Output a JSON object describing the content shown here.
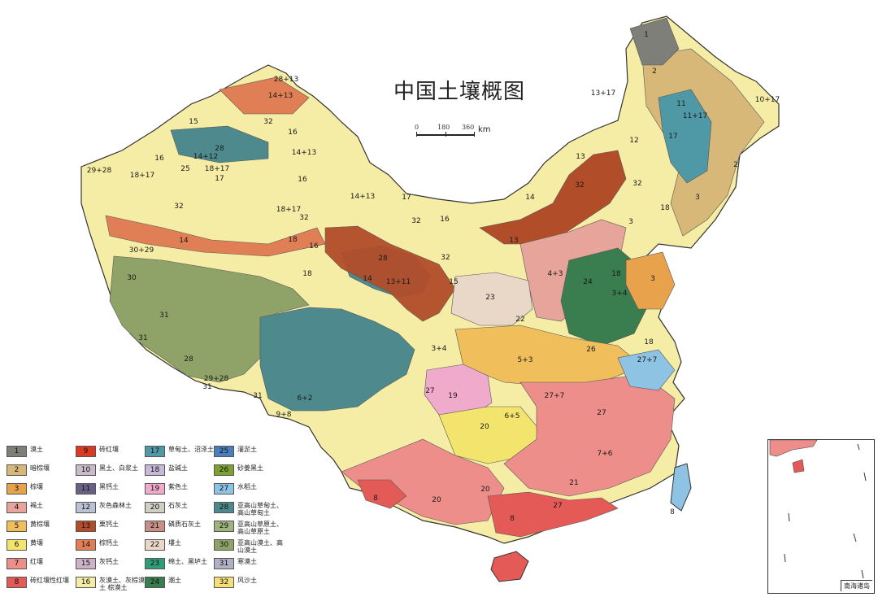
{
  "map": {
    "title": "中国土壤概图",
    "scale": {
      "ticks": [
        "0",
        "180",
        "360"
      ],
      "unit": "km"
    },
    "inset_label": "南海诸岛",
    "legend": [
      {
        "code": "1",
        "name": "漠土",
        "color": "#7d7f78"
      },
      {
        "code": "2",
        "name": "暗棕壤",
        "color": "#d8b878"
      },
      {
        "code": "3",
        "name": "棕壤",
        "color": "#e8a24c"
      },
      {
        "code": "4",
        "name": "褐土",
        "color": "#e7a49a"
      },
      {
        "code": "5",
        "name": "黄棕壤",
        "color": "#f0bf5c"
      },
      {
        "code": "6",
        "name": "黄壤",
        "color": "#f3e46e"
      },
      {
        "code": "7",
        "name": "红壤",
        "color": "#ee8e8a"
      },
      {
        "code": "8",
        "name": "砖红壤性红壤",
        "color": "#e35a56"
      },
      {
        "code": "9",
        "name": "砖红壤",
        "color": "#d83a24"
      },
      {
        "code": "10",
        "name": "黑土、白浆土",
        "color": "#c9bcc8"
      },
      {
        "code": "11",
        "name": "黑钙土",
        "color": "#6a5f86"
      },
      {
        "code": "12",
        "name": "灰色森林土",
        "color": "#bcc2d6"
      },
      {
        "code": "13",
        "name": "栗钙土",
        "color": "#b24d2a"
      },
      {
        "code": "14",
        "name": "棕钙土",
        "color": "#e07f55"
      },
      {
        "code": "15",
        "name": "灰钙土",
        "color": "#ccb2c6"
      },
      {
        "code": "16",
        "name": "灰漠土、灰棕漠土 棕漠土",
        "color": "#f5eda6"
      },
      {
        "code": "17",
        "name": "草甸土、沼泽土",
        "color": "#4f98a6"
      },
      {
        "code": "18",
        "name": "盐碱土",
        "color": "#c7b7d8"
      },
      {
        "code": "19",
        "name": "紫色土",
        "color": "#f0aacb"
      },
      {
        "code": "20",
        "name": "石灰土",
        "color": "#d0cfc4"
      },
      {
        "code": "21",
        "name": "磷质石灰土",
        "color": "#c88f86"
      },
      {
        "code": "22",
        "name": "塿土",
        "color": "#e9d7c8"
      },
      {
        "code": "23",
        "name": "绵土、黑垆土",
        "color": "#2e9d78"
      },
      {
        "code": "24",
        "name": "潮土",
        "color": "#3a7d4f"
      },
      {
        "code": "25",
        "name": "灌淤土",
        "color": "#4c7dbd"
      },
      {
        "code": "26",
        "name": "砂姜黑土",
        "color": "#7ea132"
      },
      {
        "code": "27",
        "name": "水稻土",
        "color": "#8ec3e3"
      },
      {
        "code": "28",
        "name": "亚高山草甸土、高山草甸土",
        "color": "#4e8a8d"
      },
      {
        "code": "29",
        "name": "亚高山草原土、高山草原土",
        "color": "#9fb47c"
      },
      {
        "code": "30",
        "name": "亚高山漠土、高山漠土",
        "color": "#8fa368"
      },
      {
        "code": "31",
        "name": "寒漠土",
        "color": "#b0b1c5"
      },
      {
        "code": "32",
        "name": "风沙土",
        "color": "#f5dd7a"
      }
    ],
    "region_labels": [
      "1",
      "2",
      "10+17",
      "13+17",
      "11",
      "11+17",
      "17",
      "12",
      "2",
      "3",
      "32",
      "13",
      "14",
      "32",
      "18",
      "3",
      "28+13",
      "14+13",
      "32",
      "15",
      "16",
      "28",
      "14+13",
      "14+12",
      "16",
      "25",
      "18+17",
      "29+28",
      "18+17",
      "17",
      "32",
      "16",
      "14+13",
      "18+17",
      "32",
      "17",
      "32",
      "16",
      "14",
      "30+29",
      "30",
      "28",
      "18",
      "16",
      "18",
      "14",
      "13+11",
      "32",
      "15",
      "23",
      "13",
      "4+3",
      "24",
      "18",
      "3+4",
      "3",
      "31",
      "31",
      "28",
      "29+28",
      "31",
      "31",
      "6+2",
      "9+8",
      "3+4",
      "5+3",
      "22",
      "26",
      "18",
      "27+7",
      "27",
      "19",
      "27+7",
      "6+5",
      "20",
      "7+6",
      "27",
      "8",
      "20",
      "20",
      "8",
      "27",
      "8",
      "21",
      "21",
      "21",
      "21",
      "8"
    ]
  }
}
